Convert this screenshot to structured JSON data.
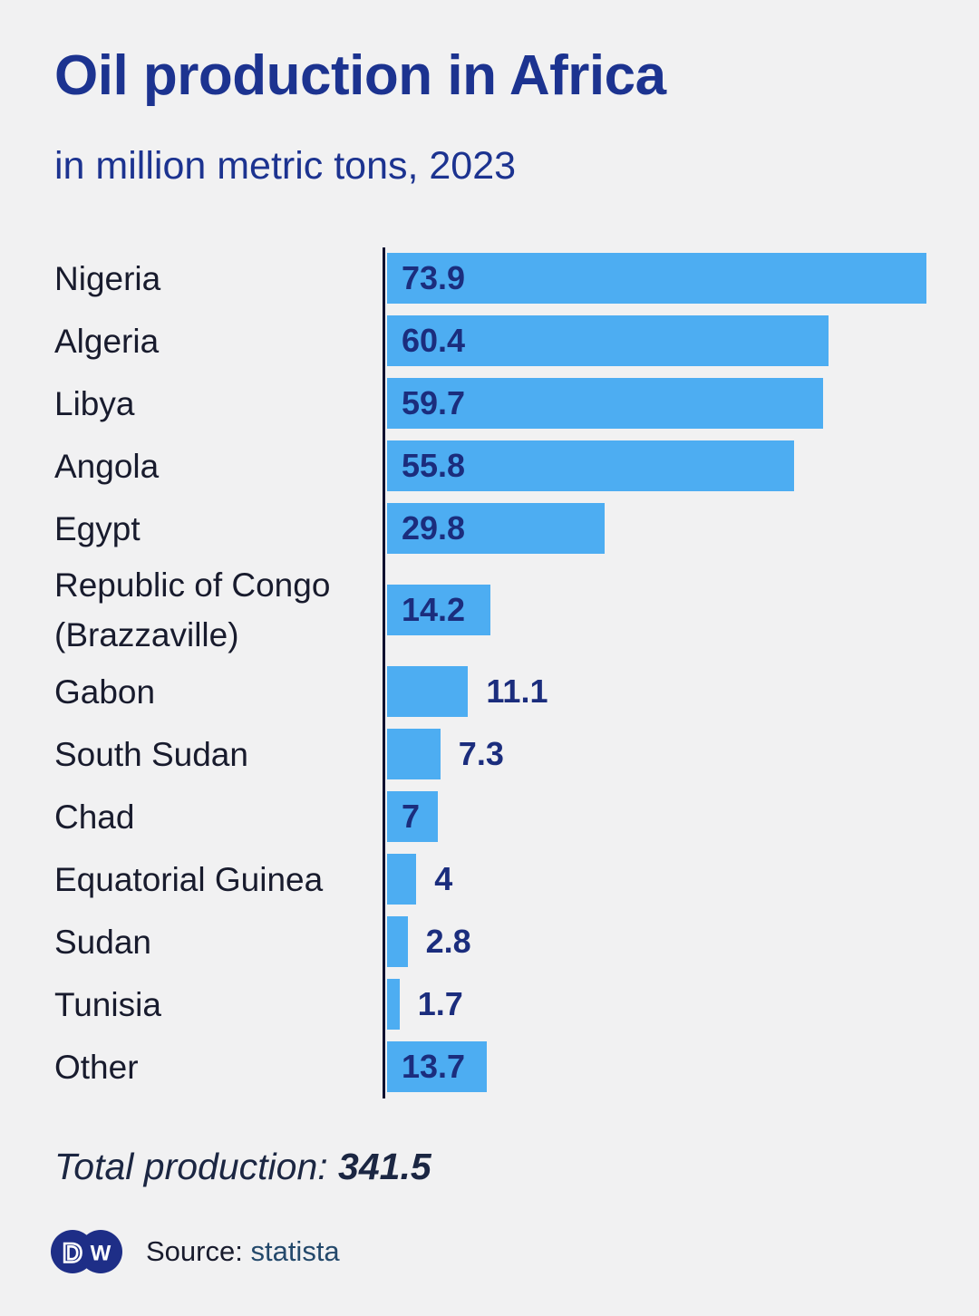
{
  "header": {
    "title": "Oil production in Africa",
    "subtitle": "in million metric tons, 2023"
  },
  "chart_data": {
    "type": "bar",
    "orientation": "horizontal",
    "title": "Oil production in Africa",
    "subtitle": "in million metric tons, 2023",
    "unit": "million metric tons",
    "year": "2023",
    "xlim": [
      0,
      74
    ],
    "grid": false,
    "legend": false,
    "bar_color": "#4dadf2",
    "categories": [
      "Nigeria",
      "Algeria",
      "Libya",
      "Angola",
      "Egypt",
      "Republic of Congo (Brazzaville)",
      "Gabon",
      "South Sudan",
      "Chad",
      "Equatorial Guinea",
      "Sudan",
      "Tunisia",
      "Other"
    ],
    "values": [
      73.9,
      60.4,
      59.7,
      55.8,
      29.8,
      14.2,
      11.1,
      7.3,
      7,
      4,
      2.8,
      1.7,
      13.7
    ],
    "value_labels": [
      "73.9",
      "60.4",
      "59.7",
      "55.8",
      "29.8",
      "14.2",
      "11.1",
      "7.3",
      "7",
      "4",
      "2.8",
      "1.7",
      "13.7"
    ]
  },
  "footer": {
    "total_label": "Total production:",
    "total_value": "341.5",
    "source_label": "Source:",
    "source_name": "statista",
    "logo_text": "DW"
  },
  "colors": {
    "background": "#f1f1f2",
    "title_blue": "#1c3390",
    "bar_blue": "#4dadf2",
    "value_navy": "#1b2d7d",
    "label_dark": "#181b2d",
    "axis_dark": "#0c1030",
    "logo_navy": "#1e2e87",
    "source_link": "#24496b",
    "total_text": "#1b2642"
  }
}
